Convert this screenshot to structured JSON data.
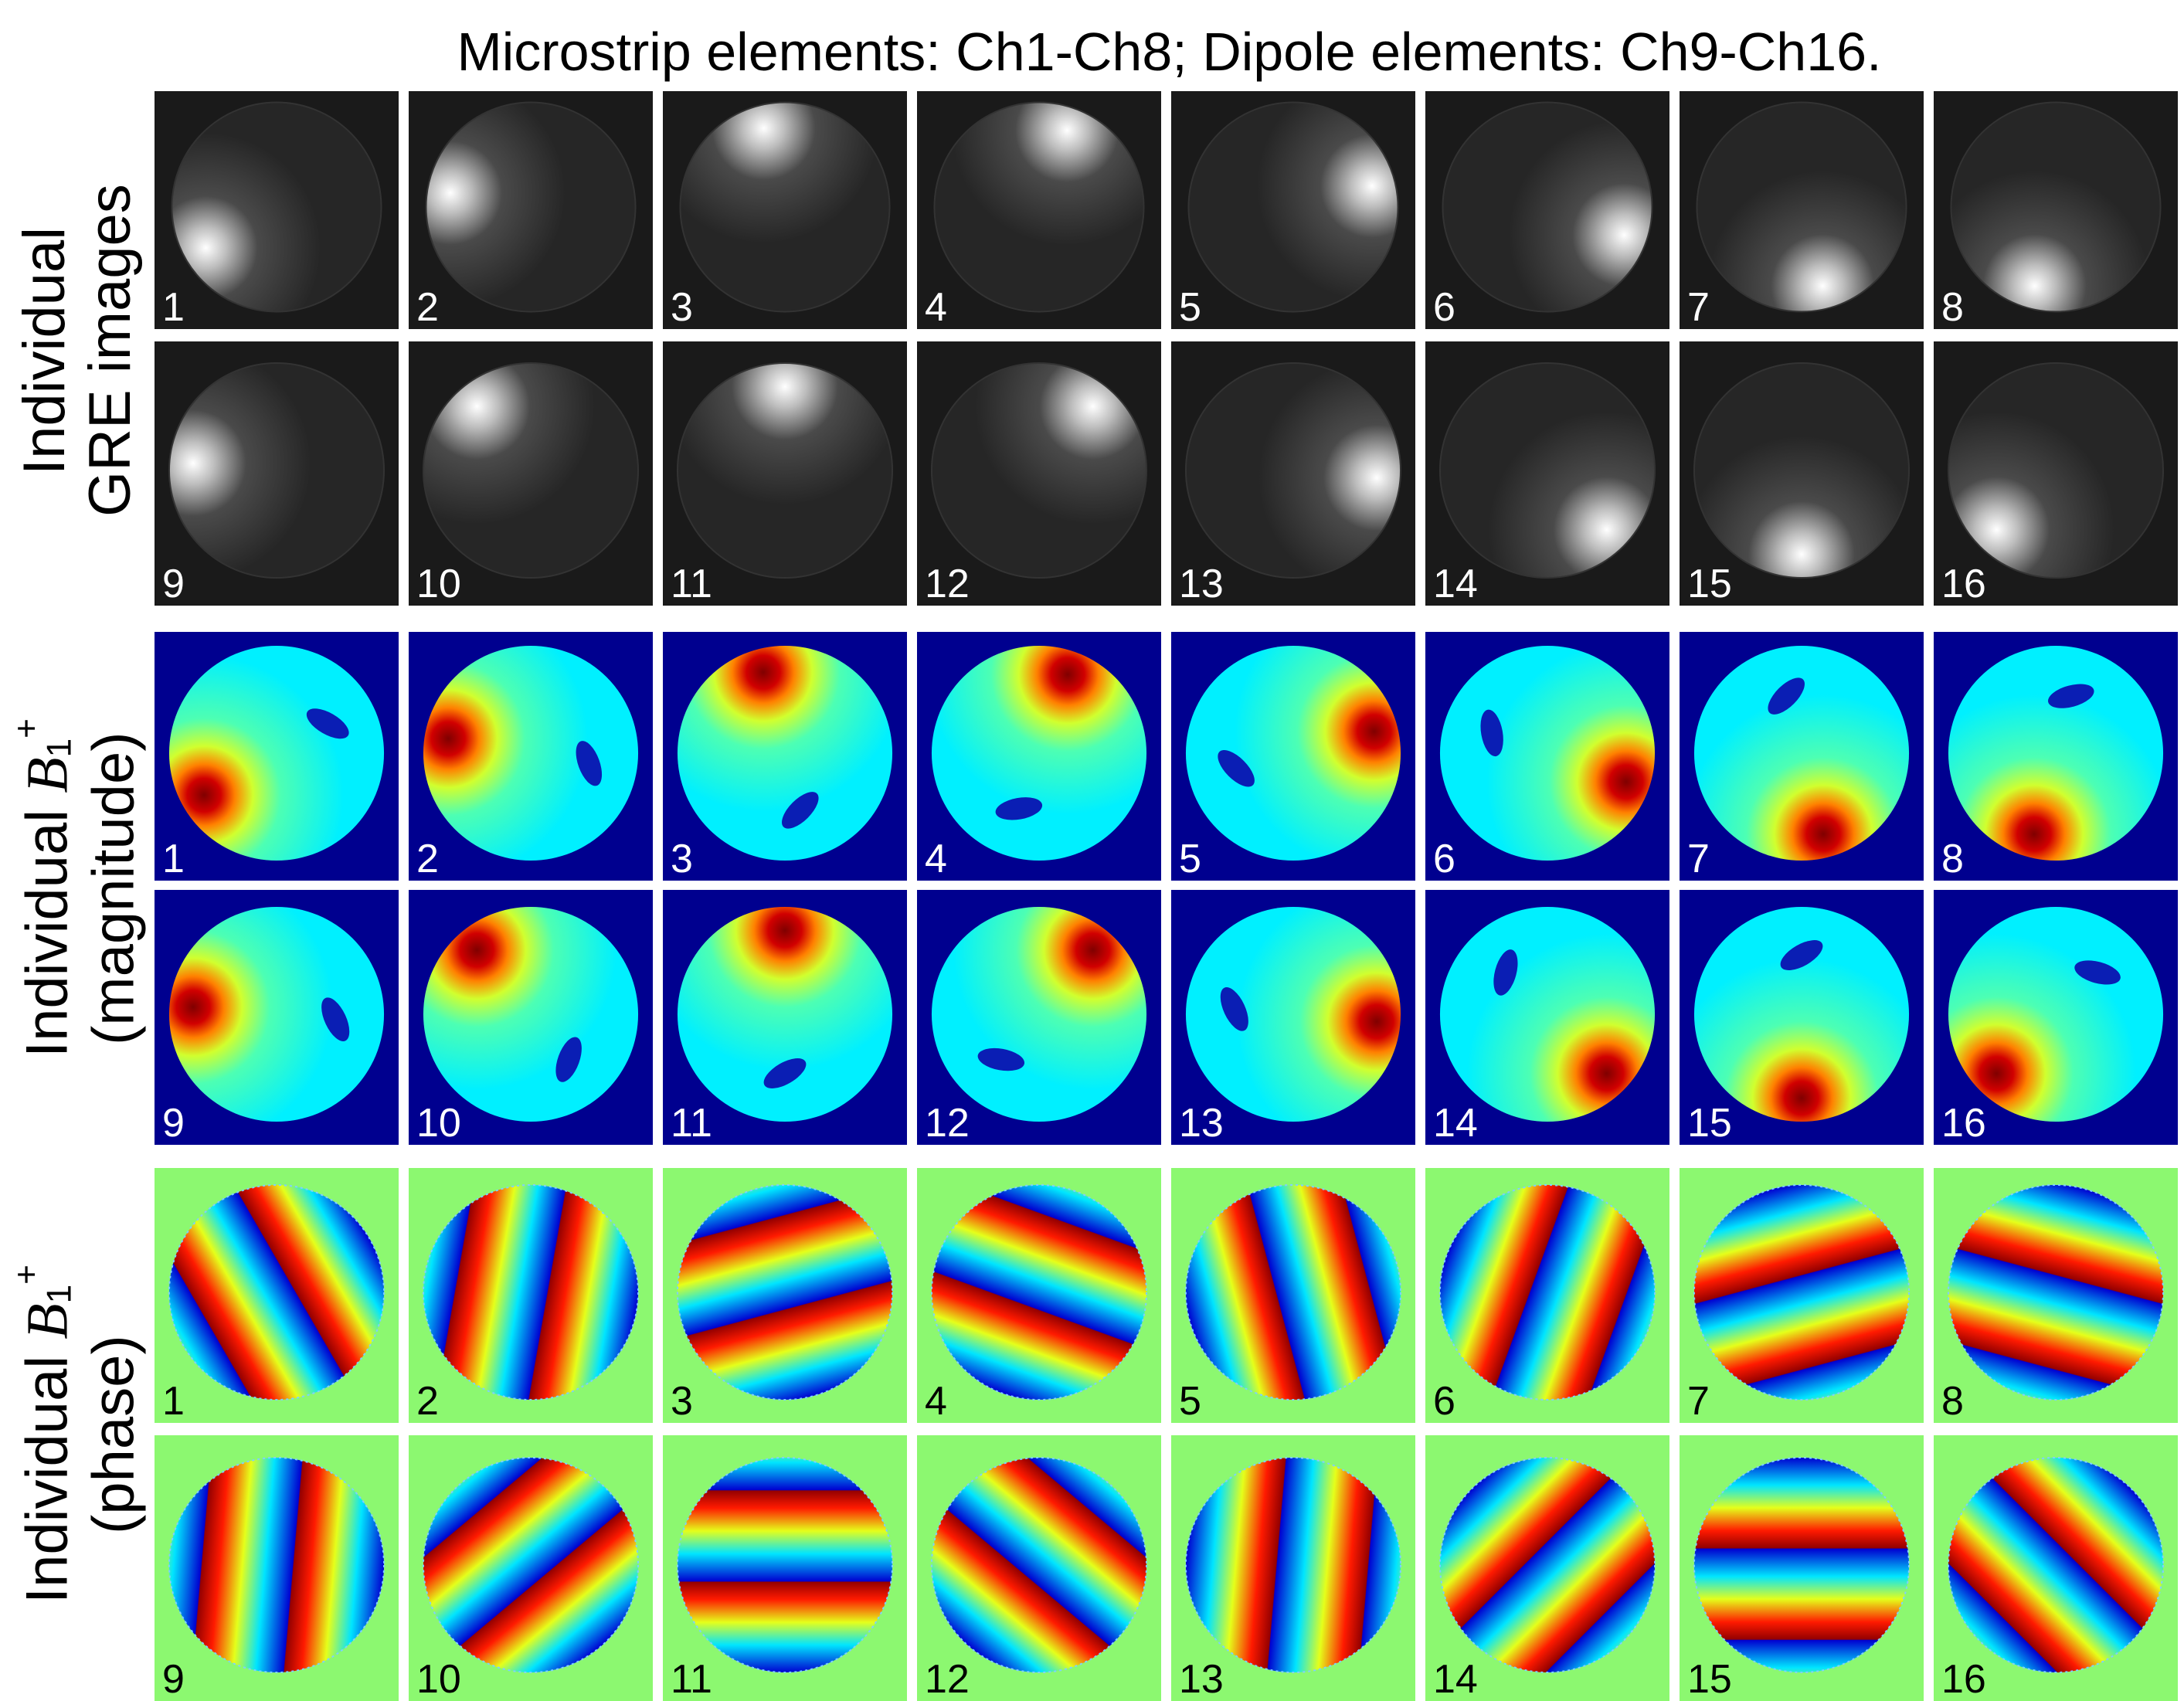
{
  "title": "Microstrip elements: Ch1-Ch8; Dipole elements: Ch9-Ch16.",
  "row_labels": {
    "gre": {
      "line1": "Individual",
      "line2": "GRE images"
    },
    "magnitude": {
      "line1_prefix": "Individual ",
      "b": "B",
      "sub": "1",
      "sup": "+",
      "line2": "(magnitude)"
    },
    "phase": {
      "line1_prefix": "Individual ",
      "b": "B",
      "sub": "1",
      "sup": "+",
      "line2": "(phase)"
    }
  },
  "channels": [
    "1",
    "2",
    "3",
    "4",
    "5",
    "6",
    "7",
    "8",
    "9",
    "10",
    "11",
    "12",
    "13",
    "14",
    "15",
    "16"
  ],
  "colors": {
    "gre_background": "#1a1a1a",
    "magnitude_background": "#00008f",
    "phase_background": "#8cf870",
    "colormap": "jet"
  }
}
